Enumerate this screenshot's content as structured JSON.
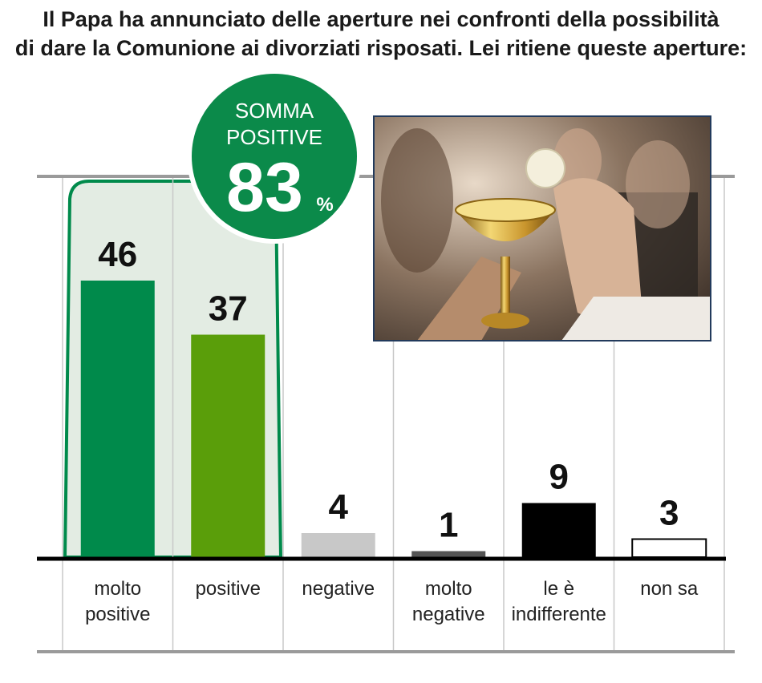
{
  "question": {
    "line1": "Il Papa ha annunciato delle aperture nei confronti della possibilità",
    "line2": "di dare la Comunione ai divorziati risposati. Lei ritiene queste aperture:"
  },
  "badge": {
    "title_line1": "SOMMA",
    "title_line2": "POSITIVE",
    "value": "83",
    "unit": "%"
  },
  "photo": {
    "subject": "Communion chalice and host"
  },
  "colors": {
    "dark_green": "#008a4b",
    "light_green": "#5a9e0a",
    "gray": "#c8c8c8",
    "dark_gray": "#555555",
    "black": "#000000",
    "white": "#ffffff",
    "highlight_fill": "#e3ece3",
    "badge_green": "#0b8a4a"
  },
  "chart_data": {
    "type": "bar",
    "categories": [
      [
        "molto",
        "positive"
      ],
      [
        "positive"
      ],
      [
        "negative"
      ],
      [
        "molto",
        "negative"
      ],
      [
        "le è",
        "indifferente"
      ],
      [
        "non sa"
      ]
    ],
    "values": [
      46,
      37,
      4,
      1,
      9,
      3
    ],
    "value_labels": [
      "46",
      "37",
      "4",
      "1",
      "9",
      "3"
    ],
    "bar_colors": [
      "dark_green",
      "light_green",
      "gray",
      "dark_gray",
      "black",
      "white"
    ],
    "ylim": [
      0,
      50
    ],
    "grid": false,
    "highlight_group": {
      "categories": [
        0,
        1
      ],
      "label": "SOMMA POSITIVE",
      "value": 83
    }
  }
}
